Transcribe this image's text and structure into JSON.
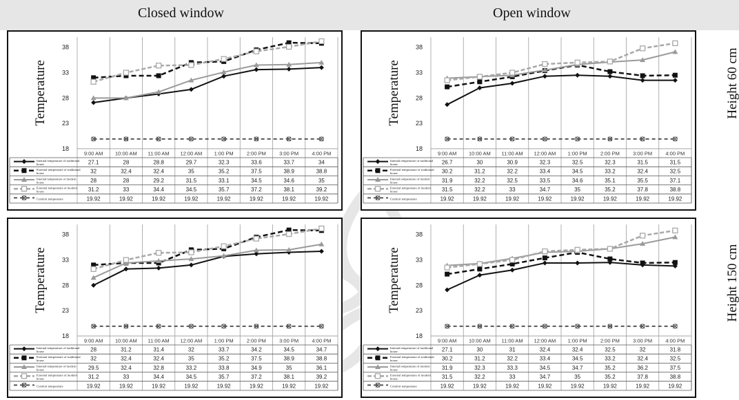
{
  "headers": {
    "closed": "Closed window",
    "open": "Open window"
  },
  "rows": {
    "h60": "Height 60 cm",
    "h150": "Height 150 cm"
  },
  "chart_data": [
    {
      "type": "line",
      "window": "closed",
      "height": "60",
      "ylabel": "Temperature",
      "yticks": [
        18,
        23,
        28,
        33,
        38
      ],
      "ylim": [
        18,
        40
      ],
      "categories": [
        "9:00 AM",
        "10:00 AM",
        "11:00 AM",
        "12:00 AM",
        "1:00 PM",
        "2:00 PM",
        "3:00 PM",
        "4:00 PM"
      ],
      "series": [
        {
          "name": "Internal temperature of traditional house",
          "values": [
            27.1,
            28,
            28.8,
            29.7,
            32.3,
            33.6,
            33.7,
            34
          ],
          "labels": [
            "27.1",
            "28",
            "28.8",
            "29.7",
            "32.3",
            "33.6",
            "33.7",
            "34"
          ],
          "color": "#111111",
          "dash": "",
          "width": 2,
          "marker": "diamond"
        },
        {
          "name": "External temperature of traditional house",
          "values": [
            32,
            32.4,
            32.4,
            35,
            35.2,
            37.5,
            38.9,
            38.8
          ],
          "labels": [
            "32",
            "32.4",
            "32.4",
            "35",
            "35.2",
            "37.5",
            "38.9",
            "38.8"
          ],
          "color": "#111111",
          "dash": "7,4",
          "width": 2.5,
          "marker": "square"
        },
        {
          "name": "Internal temperature of modern house",
          "values": [
            28,
            28,
            29.2,
            31.5,
            33.1,
            34.5,
            34.6,
            35
          ],
          "labels": [
            "28",
            "28",
            "29.2",
            "31.5",
            "33.1",
            "34.5",
            "34.6",
            "35"
          ],
          "color": "#9a9a9a",
          "dash": "",
          "width": 2,
          "marker": "triangle"
        },
        {
          "name": "External temperature of modern house",
          "values": [
            31.2,
            33,
            34.4,
            34.5,
            35.7,
            37.2,
            38.1,
            39.2
          ],
          "labels": [
            "31.2",
            "33",
            "34.4",
            "34.5",
            "35.7",
            "37.2",
            "38.1",
            "39.2"
          ],
          "color": "#a8a8a8",
          "dash": "6,3",
          "width": 2.5,
          "marker": "square-open"
        },
        {
          "name": "Comfort temperature",
          "values": [
            19.92,
            19.92,
            19.92,
            19.92,
            19.92,
            19.92,
            19.92,
            19.92
          ],
          "labels": [
            "19.92",
            "19.92",
            "19.92",
            "19.92",
            "19.92",
            "19.92",
            "19.92",
            "19.92"
          ],
          "color": "#555555",
          "dash": "5,4",
          "width": 2,
          "marker": "x"
        }
      ]
    },
    {
      "type": "line",
      "window": "open",
      "height": "60",
      "ylabel": "Temperature",
      "yticks": [
        18,
        23,
        28,
        33,
        38
      ],
      "ylim": [
        18,
        40
      ],
      "categories": [
        "9:00 AM",
        "10:00 AM",
        "11:00 AM",
        "12:00 AM",
        "1:00 PM",
        "2:00 PM",
        "3:00 PM",
        "4:00 PM"
      ],
      "series": [
        {
          "name": "Internal temperature of traditional house",
          "values": [
            26.7,
            30,
            30.9,
            32.3,
            32.5,
            32.3,
            31.5,
            31.5
          ],
          "labels": [
            "26.7",
            "30",
            "30.9",
            "32.3",
            "32.5",
            "32.3",
            "31.5",
            "31.5"
          ],
          "color": "#111111",
          "dash": "",
          "width": 2,
          "marker": "diamond"
        },
        {
          "name": "External temperature of traditional house",
          "values": [
            30.2,
            31.2,
            32.2,
            33.4,
            34.5,
            33.2,
            32.4,
            32.5
          ],
          "labels": [
            "30.2",
            "31.2",
            "32.2",
            "33.4",
            "34.5",
            "33.2",
            "32.4",
            "32.5"
          ],
          "color": "#111111",
          "dash": "7,4",
          "width": 2.5,
          "marker": "square"
        },
        {
          "name": "Internal temperature of modern house",
          "values": [
            31.9,
            32.2,
            32.5,
            33.5,
            34.6,
            35.1,
            35.5,
            37.1
          ],
          "labels": [
            "31.9",
            "32.2",
            "32.5",
            "33.5",
            "34.6",
            "35.1",
            "35.5",
            "37.1"
          ],
          "color": "#9a9a9a",
          "dash": "",
          "width": 2,
          "marker": "triangle"
        },
        {
          "name": "External temperature of modern house",
          "values": [
            31.5,
            32.2,
            33,
            34.7,
            35,
            35.2,
            37.8,
            38.8
          ],
          "labels": [
            "31.5",
            "32.2",
            "33",
            "34.7",
            "35",
            "35.2",
            "37.8",
            "38.8"
          ],
          "color": "#a8a8a8",
          "dash": "6,3",
          "width": 2.5,
          "marker": "square-open"
        },
        {
          "name": "Comfort temperature",
          "values": [
            19.92,
            19.92,
            19.92,
            19.92,
            19.92,
            19.92,
            19.92,
            19.92
          ],
          "labels": [
            "19.92",
            "19.92",
            "19.92",
            "19.92",
            "19.92",
            "19.92",
            "19.92",
            "19.92"
          ],
          "color": "#555555",
          "dash": "5,4",
          "width": 2,
          "marker": "x"
        }
      ]
    },
    {
      "type": "line",
      "window": "closed",
      "height": "150",
      "ylabel": "Temperature",
      "yticks": [
        18,
        23,
        28,
        33,
        38
      ],
      "ylim": [
        18,
        40
      ],
      "categories": [
        "9:00 AM",
        "10:00 AM",
        "11:00 AM",
        "12:00 AM",
        "1:00 PM",
        "2:00 PM",
        "3:00 PM",
        "4:00 PM"
      ],
      "series": [
        {
          "name": "Internal temperature of traditional house",
          "values": [
            28,
            31.2,
            31.4,
            32,
            33.7,
            34.2,
            34.5,
            34.7
          ],
          "labels": [
            "28",
            "31.2",
            "31.4",
            "32",
            "33.7",
            "34.2",
            "34.5",
            "34.7"
          ],
          "color": "#111111",
          "dash": "",
          "width": 2,
          "marker": "diamond"
        },
        {
          "name": "External temperature of traditional house",
          "values": [
            32,
            32.4,
            32.4,
            35,
            35.2,
            37.5,
            38.9,
            38.8
          ],
          "labels": [
            "32",
            "32.4",
            "32.4",
            "35",
            "35.2",
            "37.5",
            "38.9",
            "38.8"
          ],
          "color": "#111111",
          "dash": "7,4",
          "width": 2.5,
          "marker": "square"
        },
        {
          "name": "Internal temperature of modern house",
          "values": [
            29.5,
            32.4,
            32.8,
            33.2,
            33.8,
            34.9,
            35,
            36.1
          ],
          "labels": [
            "29.5",
            "32.4",
            "32.8",
            "33.2",
            "33.8",
            "34.9",
            "35",
            "36.1"
          ],
          "color": "#9a9a9a",
          "dash": "",
          "width": 2,
          "marker": "triangle"
        },
        {
          "name": "External temperature of modern house",
          "values": [
            31.2,
            33,
            34.4,
            34.5,
            35.7,
            37.2,
            38.1,
            39.2
          ],
          "labels": [
            "31.2",
            "33",
            "34.4",
            "34.5",
            "35.7",
            "37.2",
            "38.1",
            "39.2"
          ],
          "color": "#a8a8a8",
          "dash": "6,3",
          "width": 2.5,
          "marker": "square-open"
        },
        {
          "name": "Comfort temperature",
          "values": [
            19.92,
            19.92,
            19.92,
            19.92,
            19.92,
            19.92,
            19.92,
            19.92
          ],
          "labels": [
            "19.92",
            "19.92",
            "19.92",
            "19.92",
            "19.92",
            "19.92",
            "19.92",
            "19.92"
          ],
          "color": "#555555",
          "dash": "5,4",
          "width": 2,
          "marker": "x"
        }
      ]
    },
    {
      "type": "line",
      "window": "open",
      "height": "150",
      "ylabel": "Temperature",
      "yticks": [
        18,
        23,
        28,
        33,
        38
      ],
      "ylim": [
        18,
        40
      ],
      "categories": [
        "9:00 AM",
        "10:00 AM",
        "11:00 AM",
        "12:00 AM",
        "1:00 PM",
        "2:00 PM",
        "3:00 PM",
        "4:00 PM"
      ],
      "series": [
        {
          "name": "Internal temperature of traditional house",
          "values": [
            27.1,
            30,
            31,
            32.4,
            32.4,
            32.5,
            32,
            31.8
          ],
          "labels": [
            "27.1",
            "30",
            "31",
            "32.4",
            "32.4",
            "32.5",
            "32",
            "31.8"
          ],
          "color": "#111111",
          "dash": "",
          "width": 2,
          "marker": "diamond"
        },
        {
          "name": "External temperature of traditional house",
          "values": [
            30.2,
            31.2,
            32.2,
            33.4,
            34.5,
            33.2,
            32.4,
            32.5
          ],
          "labels": [
            "30.2",
            "31.2",
            "32.2",
            "33.4",
            "34.5",
            "33.2",
            "32.4",
            "32.5"
          ],
          "color": "#111111",
          "dash": "7,4",
          "width": 2.5,
          "marker": "square"
        },
        {
          "name": "Internal temperature of modern house",
          "values": [
            31.9,
            32.3,
            33.3,
            34.5,
            34.7,
            35.2,
            36.2,
            37.5
          ],
          "labels": [
            "31.9",
            "32.3",
            "33.3",
            "34.5",
            "34.7",
            "35.2",
            "36.2",
            "37.5"
          ],
          "color": "#9a9a9a",
          "dash": "",
          "width": 2,
          "marker": "triangle"
        },
        {
          "name": "External temperature of modern house",
          "values": [
            31.5,
            32.2,
            33,
            34.7,
            35,
            35.2,
            37.8,
            38.8
          ],
          "labels": [
            "31.5",
            "32.2",
            "33",
            "34.7",
            "35",
            "35.2",
            "37.8",
            "38.8"
          ],
          "color": "#a8a8a8",
          "dash": "6,3",
          "width": 2.5,
          "marker": "square-open"
        },
        {
          "name": "Comfort temperature",
          "values": [
            19.92,
            19.92,
            19.92,
            19.92,
            19.92,
            19.92,
            19.92,
            19.92
          ],
          "labels": [
            "19.92",
            "19.92",
            "19.92",
            "19.92",
            "19.92",
            "19.92",
            "19.92",
            "19.92"
          ],
          "color": "#555555",
          "dash": "5,4",
          "width": 2,
          "marker": "x"
        }
      ]
    }
  ]
}
